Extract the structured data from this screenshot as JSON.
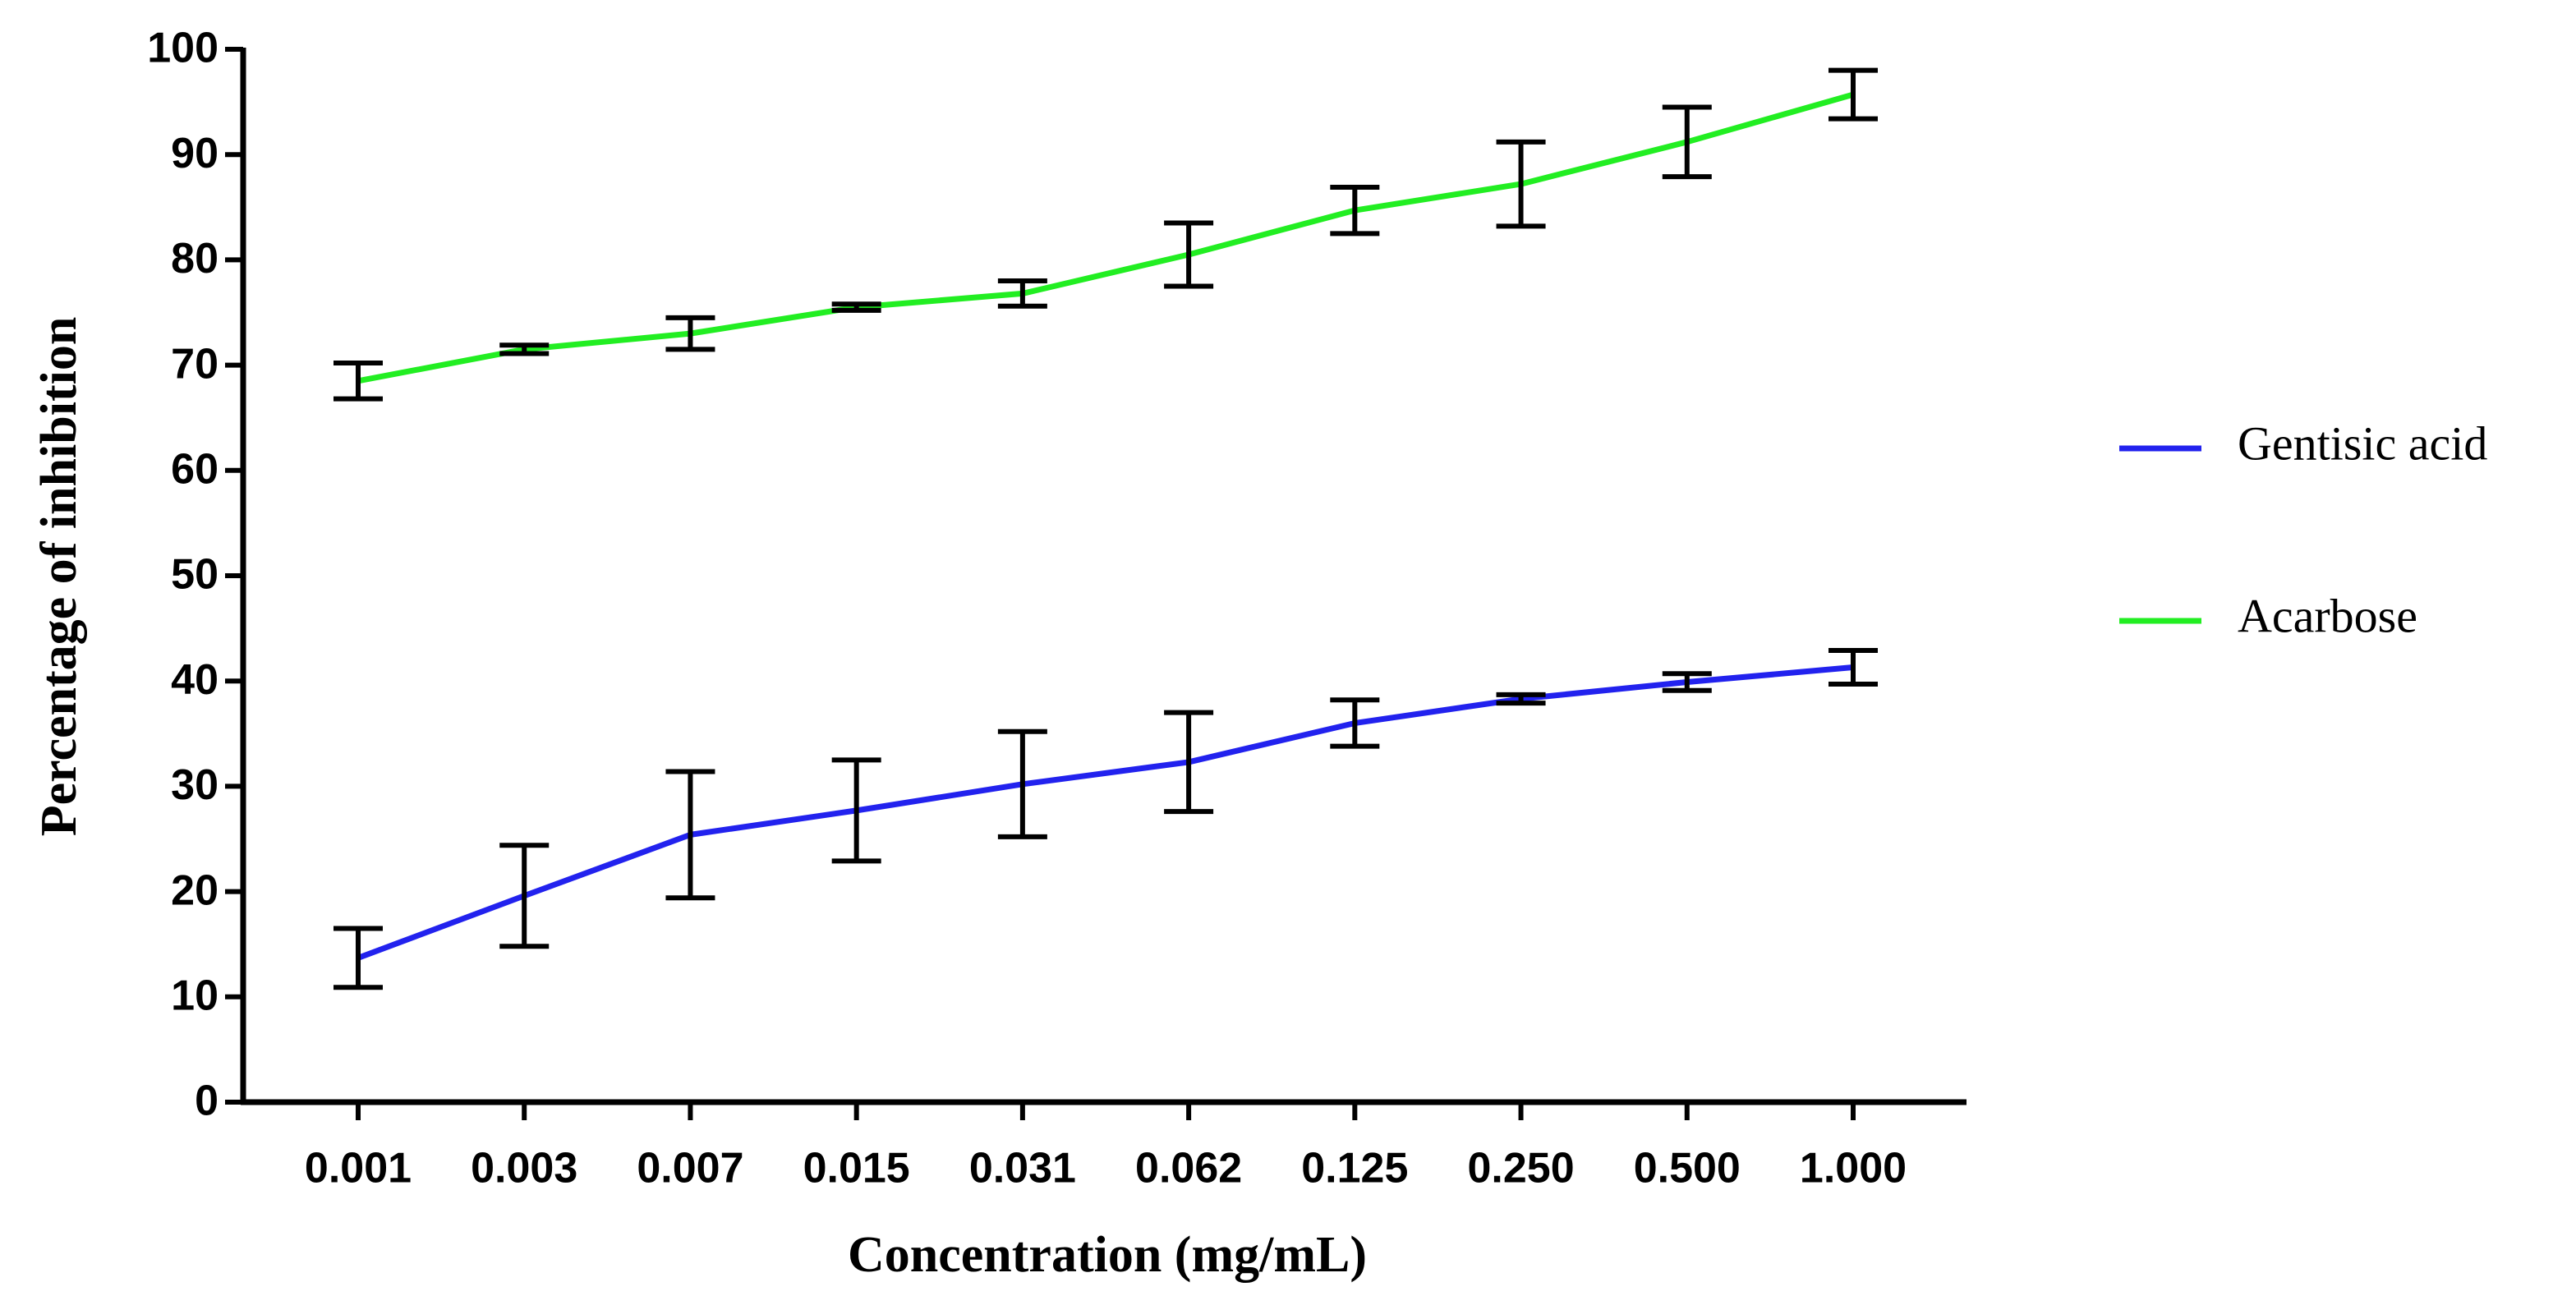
{
  "chart_data": {
    "type": "line",
    "x_label": "Concentration (mg/mL)",
    "y_label": "Percentage of inhibition",
    "categories": [
      "0.001",
      "0.003",
      "0.007",
      "0.015",
      "0.031",
      "0.062",
      "0.125",
      "0.250",
      "0.500",
      "1.000"
    ],
    "series": [
      {
        "name": "Gentisic acid",
        "color": "#2222ee",
        "values": [
          13.7,
          19.6,
          25.4,
          27.7,
          30.2,
          32.3,
          36.0,
          38.3,
          39.9,
          41.3
        ],
        "errors": [
          2.8,
          4.8,
          6.0,
          4.8,
          5.0,
          4.7,
          2.2,
          0.4,
          0.8,
          1.6
        ]
      },
      {
        "name": "Acarbose",
        "color": "#22ee22",
        "values": [
          68.5,
          71.5,
          73.0,
          75.5,
          76.8,
          80.5,
          84.7,
          87.2,
          91.2,
          95.7
        ],
        "errors": [
          1.7,
          0.4,
          1.5,
          0.3,
          1.2,
          3.0,
          2.2,
          4.0,
          3.3,
          2.3
        ]
      }
    ],
    "ylim": [
      0,
      100
    ],
    "yticks": [
      0,
      10,
      20,
      30,
      40,
      50,
      60,
      70,
      80,
      90,
      100
    ],
    "legend": "right",
    "error_bar_color": "#000000"
  }
}
